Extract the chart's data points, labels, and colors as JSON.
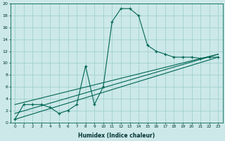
{
  "xlabel": "Humidex (Indice chaleur)",
  "background_color": "#cce8e8",
  "grid_color": "#99cccc",
  "line_color": "#006655",
  "xlim": [
    -0.5,
    23.5
  ],
  "ylim": [
    0,
    20
  ],
  "xticks": [
    0,
    1,
    2,
    3,
    4,
    5,
    6,
    7,
    8,
    9,
    10,
    11,
    12,
    13,
    14,
    15,
    16,
    17,
    18,
    19,
    20,
    21,
    22,
    23
  ],
  "yticks": [
    0,
    2,
    4,
    6,
    8,
    10,
    12,
    14,
    16,
    18,
    20
  ],
  "curve_main_x": [
    0,
    1,
    2,
    3,
    4,
    5,
    6,
    7,
    8,
    9,
    10,
    11,
    12,
    13,
    14,
    15,
    16,
    17,
    18,
    19,
    20,
    21,
    22,
    23
  ],
  "curve_main_y": [
    0.5,
    3,
    3,
    3,
    2.5,
    1.5,
    2,
    3,
    9.5,
    3,
    6,
    17,
    19.2,
    19.2,
    18,
    13,
    12,
    11.5,
    11,
    11,
    11,
    10.8,
    11,
    11
  ],
  "line1_x": [
    0,
    23
  ],
  "line1_y": [
    0.5,
    11
  ],
  "line2_x": [
    0,
    23
  ],
  "line2_y": [
    1.5,
    11.5
  ],
  "line3_x": [
    0,
    23
  ],
  "line3_y": [
    3.0,
    11.5
  ]
}
